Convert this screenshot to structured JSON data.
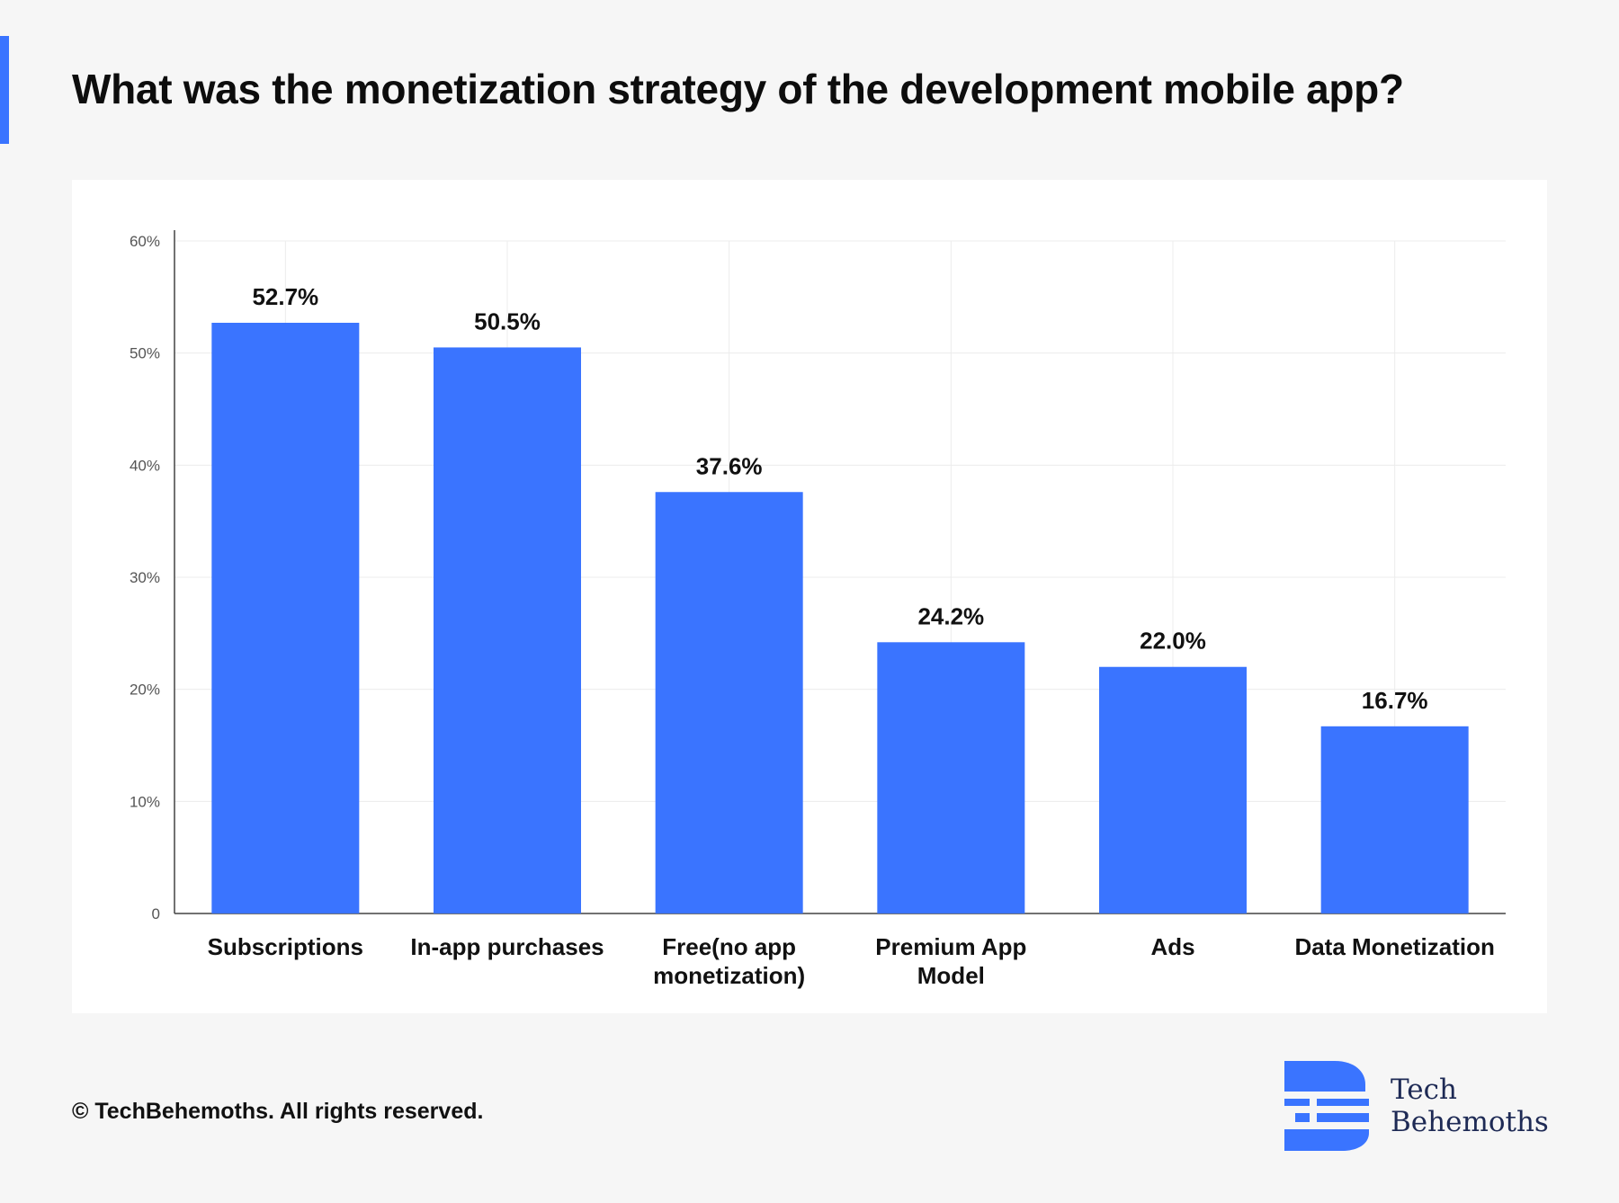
{
  "title": "What was the monetization strategy of the development mobile app?",
  "footer": {
    "copyright": "© TechBehemoths. All rights reserved."
  },
  "logo": {
    "line1": "Tech",
    "line2": "Behemoths",
    "icon": "techbehemoths-logo-icon"
  },
  "colors": {
    "accent": "#3a74ff",
    "bar": "#3a74ff",
    "title": "#0d0d0d",
    "axis_text": "#555555",
    "grid": "#ececec",
    "logo_text": "#1e2a55"
  },
  "chart_data": {
    "type": "bar",
    "title": "What was the monetization strategy of the development mobile app?",
    "xlabel": "",
    "ylabel": "",
    "categories": [
      [
        "Subscriptions"
      ],
      [
        "In-app purchases"
      ],
      [
        "Free(no app",
        "monetization)"
      ],
      [
        "Premium App",
        "Model"
      ],
      [
        "Ads"
      ],
      [
        "Data Monetization"
      ]
    ],
    "values": [
      52.7,
      50.5,
      37.6,
      24.2,
      22.0,
      16.7
    ],
    "value_labels": [
      "52.7%",
      "50.5%",
      "37.6%",
      "24.2%",
      "22.0%",
      "16.7%"
    ],
    "ylim": [
      0,
      60
    ],
    "yticks": [
      0,
      10,
      20,
      30,
      40,
      50,
      60
    ],
    "ytick_labels": [
      "0",
      "10%",
      "20%",
      "30%",
      "40%",
      "50%",
      "60%"
    ],
    "grid": true,
    "legend": "none"
  }
}
